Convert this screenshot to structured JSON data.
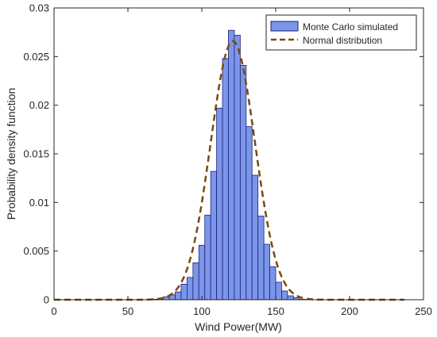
{
  "chart_data": {
    "type": "bar",
    "xlabel": "Wind Power(MW)",
    "ylabel": "Probability density function",
    "xlim": [
      0,
      250
    ],
    "ylim": [
      0,
      0.03
    ],
    "x_ticks": [
      "0",
      "50",
      "100",
      "150",
      "200",
      "250"
    ],
    "y_ticks": [
      "0",
      "0.005",
      "0.01",
      "0.015",
      "0.02",
      "0.025",
      "0.03"
    ],
    "grid": false,
    "legend_position": "top-right",
    "histogram": {
      "name": "Monte Carlo simulated",
      "color": "#7a96e8",
      "edge_color": "#1f1f7a",
      "bin_width": 4,
      "bin_starts": [
        62,
        66,
        70,
        74,
        78,
        82,
        86,
        90,
        94,
        98,
        102,
        106,
        110,
        114,
        118,
        122,
        126,
        130,
        134,
        138,
        142,
        146,
        150,
        154,
        158,
        162,
        166,
        170
      ],
      "values": [
        2e-05,
        5e-05,
        0.0001,
        0.0003,
        0.0005,
        0.0008,
        0.0016,
        0.0023,
        0.0038,
        0.0056,
        0.0087,
        0.0132,
        0.0197,
        0.0248,
        0.0277,
        0.0272,
        0.0241,
        0.0178,
        0.0128,
        0.0086,
        0.0057,
        0.0034,
        0.0018,
        0.0009,
        0.0004,
        0.0002,
        5e-05,
        2e-05
      ]
    },
    "curve": {
      "name": "Normal distribution",
      "color": "#7a4a10",
      "style": "dashed",
      "mean": 121,
      "sd": 15,
      "x_range": [
        0,
        237
      ]
    }
  }
}
